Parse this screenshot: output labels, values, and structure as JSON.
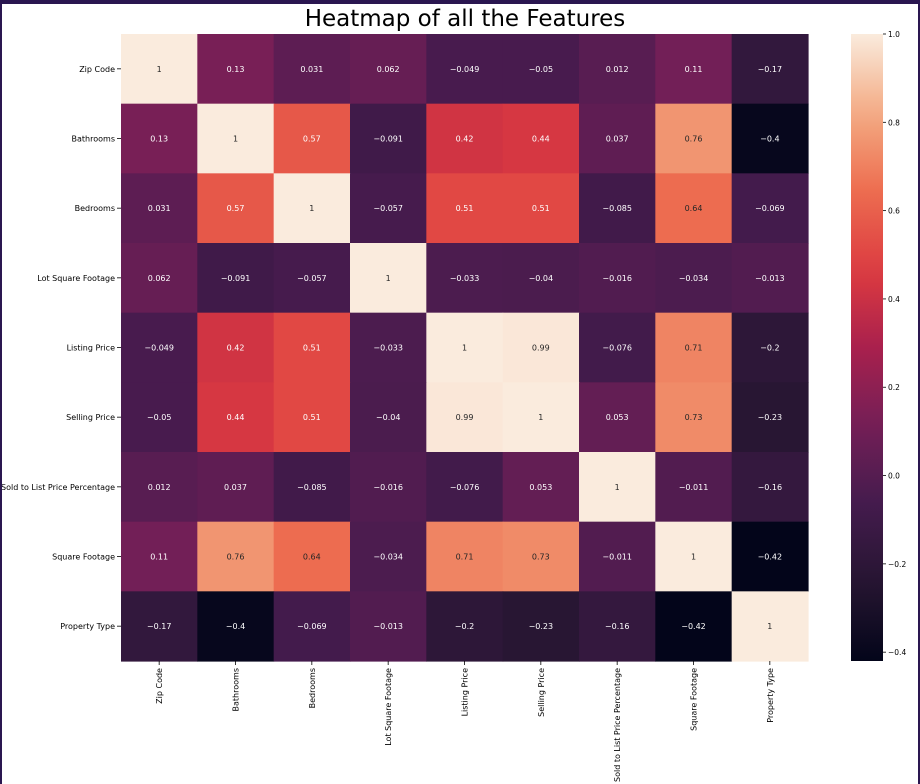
{
  "chart_data": {
    "type": "heatmap",
    "title": "Heatmap of all the Features",
    "labels": [
      "Zip Code",
      "Bathrooms",
      "Bedrooms",
      "Lot Square Footage",
      "Listing Price",
      "Selling Price",
      "Sold to List Price Percentage",
      "Square Footage",
      "Property Type"
    ],
    "values": [
      [
        1,
        0.13,
        0.031,
        0.062,
        -0.049,
        -0.05,
        0.012,
        0.11,
        -0.17
      ],
      [
        0.13,
        1,
        0.57,
        -0.091,
        0.42,
        0.44,
        0.037,
        0.76,
        -0.4
      ],
      [
        0.031,
        0.57,
        1,
        -0.057,
        0.51,
        0.51,
        -0.085,
        0.64,
        -0.069
      ],
      [
        0.062,
        -0.091,
        -0.057,
        1,
        -0.033,
        -0.04,
        -0.016,
        -0.034,
        -0.013
      ],
      [
        -0.049,
        0.42,
        0.51,
        -0.033,
        1,
        0.99,
        -0.076,
        0.71,
        -0.2
      ],
      [
        -0.05,
        0.44,
        0.51,
        -0.04,
        0.99,
        1,
        0.053,
        0.73,
        -0.23
      ],
      [
        0.012,
        0.037,
        -0.085,
        -0.016,
        -0.076,
        0.053,
        1,
        -0.011,
        -0.16
      ],
      [
        0.11,
        0.76,
        0.64,
        -0.034,
        0.71,
        0.73,
        -0.011,
        1,
        -0.42
      ],
      [
        -0.17,
        -0.4,
        -0.069,
        -0.013,
        -0.2,
        -0.23,
        -0.16,
        -0.42,
        1
      ]
    ],
    "colorbar": {
      "range": [
        -0.42,
        1
      ],
      "ticks": [
        1.0,
        0.8,
        0.6,
        0.4,
        0.2,
        0.0,
        -0.2,
        -0.4
      ],
      "tick_labels": [
        "1.0",
        "0.8",
        "0.6",
        "0.4",
        "0.2",
        "0.0",
        "−0.2",
        "−0.4"
      ]
    },
    "colormap": "rocket",
    "grid": false
  }
}
